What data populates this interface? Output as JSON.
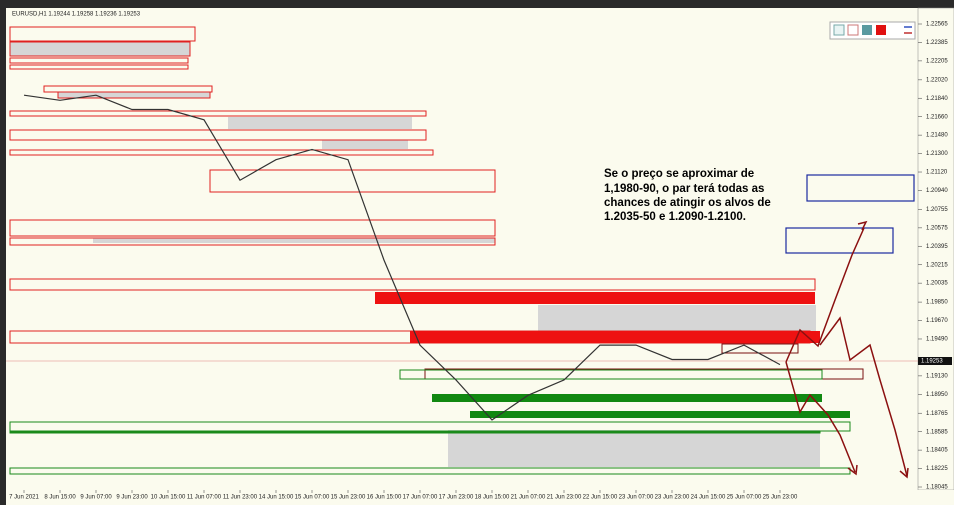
{
  "chart_data": {
    "type": "line",
    "title": "EURUSD,H1  1.19244 1.19258 1.19236 1.19253",
    "annotation": [
      "Se o preço se aproximar de",
      "1,1980-90, o par terá todas as",
      "chances de atingir os alvos de",
      "1.2035-50 e 1.2090-1.2100."
    ],
    "current_price": "1.19253",
    "color": "#333333",
    "categories": [
      "7 Jun 2021",
      "8 Jun 15:00",
      "9 Jun 07:00",
      "9 Jun 23:00",
      "10 Jun 15:00",
      "11 Jun 07:00",
      "11 Jun 23:00",
      "14 Jun 15:00",
      "15 Jun 07:00",
      "15 Jun 23:00",
      "16 Jun 15:00",
      "17 Jun 07:00",
      "17 Jun 23:00",
      "18 Jun 15:00",
      "21 Jun 07:00",
      "21 Jun 23:00",
      "22 Jun 15:00",
      "23 Jun 07:00",
      "23 Jun 23:00",
      "24 Jun 15:00",
      "25 Jun 07:00",
      "25 Jun 23:00"
    ],
    "values": [
      1.2187,
      1.2182,
      1.2187,
      1.2173,
      1.2173,
      1.2163,
      1.2104,
      1.2124,
      1.2134,
      1.2124,
      1.2026,
      1.1943,
      1.1909,
      1.187,
      1.1894,
      1.1909,
      1.1943,
      1.1943,
      1.1929,
      1.1929,
      1.1943,
      1.1924
    ],
    "ylim": [
      1.18045,
      1.22565
    ],
    "yticks": [
      {
        "value": 1.18045,
        "label": "1.18045"
      },
      {
        "value": 1.18225,
        "label": "1.18225"
      },
      {
        "value": 1.18405,
        "label": "1.18405"
      },
      {
        "value": 1.18585,
        "label": "1.18585"
      },
      {
        "value": 1.18765,
        "label": "1.18765"
      },
      {
        "value": 1.1895,
        "label": "1.18950"
      },
      {
        "value": 1.1913,
        "label": "1.19130"
      },
      {
        "value": 1.1949,
        "label": "1.19490"
      },
      {
        "value": 1.1967,
        "label": "1.19670"
      },
      {
        "value": 1.1985,
        "label": "1.19850"
      },
      {
        "value": 1.20035,
        "label": "1.20035"
      },
      {
        "value": 1.20215,
        "label": "1.20215"
      },
      {
        "value": 1.20395,
        "label": "1.20395"
      },
      {
        "value": 1.20575,
        "label": "1.20575"
      },
      {
        "value": 1.20755,
        "label": "1.20755"
      },
      {
        "value": 1.2094,
        "label": "1.20940"
      },
      {
        "value": 1.2112,
        "label": "1.21120"
      },
      {
        "value": 1.213,
        "label": "1.21300"
      },
      {
        "value": 1.2148,
        "label": "1.21480"
      },
      {
        "value": 1.2166,
        "label": "1.21660"
      },
      {
        "value": 1.2184,
        "label": "1.21840"
      },
      {
        "value": 1.2202,
        "label": "1.22020"
      },
      {
        "value": 1.22205,
        "label": "1.22205"
      },
      {
        "value": 1.22385,
        "label": "1.22385"
      },
      {
        "value": 1.22565,
        "label": "1.22565"
      }
    ]
  }
}
